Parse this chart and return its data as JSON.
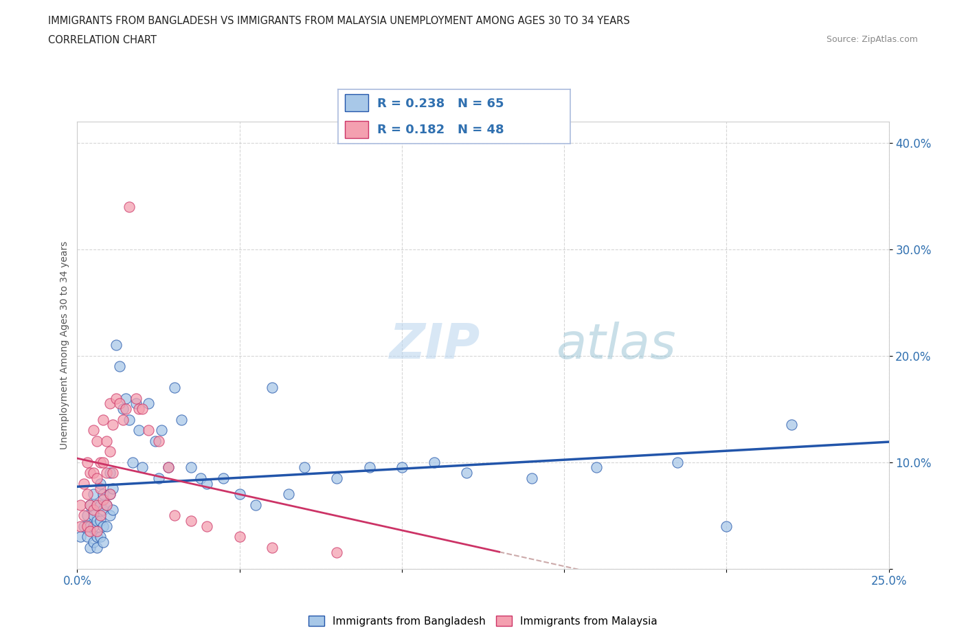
{
  "title_line1": "IMMIGRANTS FROM BANGLADESH VS IMMIGRANTS FROM MALAYSIA UNEMPLOYMENT AMONG AGES 30 TO 34 YEARS",
  "title_line2": "CORRELATION CHART",
  "source_text": "Source: ZipAtlas.com",
  "ylabel": "Unemployment Among Ages 30 to 34 years",
  "x_min": 0.0,
  "x_max": 0.25,
  "y_min": 0.0,
  "y_max": 0.42,
  "color_bangladesh": "#a8c8e8",
  "color_malaysia": "#f4a0b0",
  "color_trend_bangladesh": "#2255aa",
  "color_trend_malaysia": "#cc3366",
  "color_dashed": "#ccaaaa",
  "watermark_zip": "ZIP",
  "watermark_atlas": "atlas",
  "legend_R1": "R = 0.238",
  "legend_N1": "N = 65",
  "legend_R2": "R = 0.182",
  "legend_N2": "N = 48",
  "scatter_bangladesh_x": [
    0.001,
    0.002,
    0.003,
    0.003,
    0.004,
    0.004,
    0.004,
    0.005,
    0.005,
    0.005,
    0.005,
    0.006,
    0.006,
    0.006,
    0.006,
    0.007,
    0.007,
    0.007,
    0.007,
    0.008,
    0.008,
    0.008,
    0.008,
    0.009,
    0.009,
    0.01,
    0.01,
    0.01,
    0.011,
    0.011,
    0.012,
    0.013,
    0.014,
    0.015,
    0.016,
    0.017,
    0.018,
    0.019,
    0.02,
    0.022,
    0.024,
    0.025,
    0.026,
    0.028,
    0.03,
    0.032,
    0.035,
    0.038,
    0.04,
    0.045,
    0.05,
    0.055,
    0.06,
    0.065,
    0.07,
    0.08,
    0.09,
    0.1,
    0.11,
    0.12,
    0.14,
    0.16,
    0.185,
    0.2,
    0.22
  ],
  "scatter_bangladesh_y": [
    0.03,
    0.04,
    0.05,
    0.03,
    0.06,
    0.04,
    0.02,
    0.07,
    0.05,
    0.04,
    0.025,
    0.06,
    0.045,
    0.03,
    0.02,
    0.08,
    0.06,
    0.045,
    0.03,
    0.07,
    0.055,
    0.04,
    0.025,
    0.06,
    0.04,
    0.09,
    0.07,
    0.05,
    0.075,
    0.055,
    0.21,
    0.19,
    0.15,
    0.16,
    0.14,
    0.1,
    0.155,
    0.13,
    0.095,
    0.155,
    0.12,
    0.085,
    0.13,
    0.095,
    0.17,
    0.14,
    0.095,
    0.085,
    0.08,
    0.085,
    0.07,
    0.06,
    0.17,
    0.07,
    0.095,
    0.085,
    0.095,
    0.095,
    0.1,
    0.09,
    0.085,
    0.095,
    0.1,
    0.04,
    0.135
  ],
  "scatter_malaysia_x": [
    0.001,
    0.001,
    0.002,
    0.002,
    0.003,
    0.003,
    0.003,
    0.004,
    0.004,
    0.004,
    0.005,
    0.005,
    0.005,
    0.006,
    0.006,
    0.006,
    0.006,
    0.007,
    0.007,
    0.007,
    0.008,
    0.008,
    0.008,
    0.009,
    0.009,
    0.009,
    0.01,
    0.01,
    0.01,
    0.011,
    0.011,
    0.012,
    0.013,
    0.014,
    0.015,
    0.016,
    0.018,
    0.019,
    0.02,
    0.022,
    0.025,
    0.028,
    0.03,
    0.035,
    0.04,
    0.05,
    0.06,
    0.08
  ],
  "scatter_malaysia_y": [
    0.06,
    0.04,
    0.08,
    0.05,
    0.1,
    0.07,
    0.04,
    0.09,
    0.06,
    0.035,
    0.13,
    0.09,
    0.055,
    0.12,
    0.085,
    0.06,
    0.035,
    0.1,
    0.075,
    0.05,
    0.14,
    0.1,
    0.065,
    0.12,
    0.09,
    0.06,
    0.155,
    0.11,
    0.07,
    0.135,
    0.09,
    0.16,
    0.155,
    0.14,
    0.15,
    0.34,
    0.16,
    0.15,
    0.15,
    0.13,
    0.12,
    0.095,
    0.05,
    0.045,
    0.04,
    0.03,
    0.02,
    0.015
  ]
}
